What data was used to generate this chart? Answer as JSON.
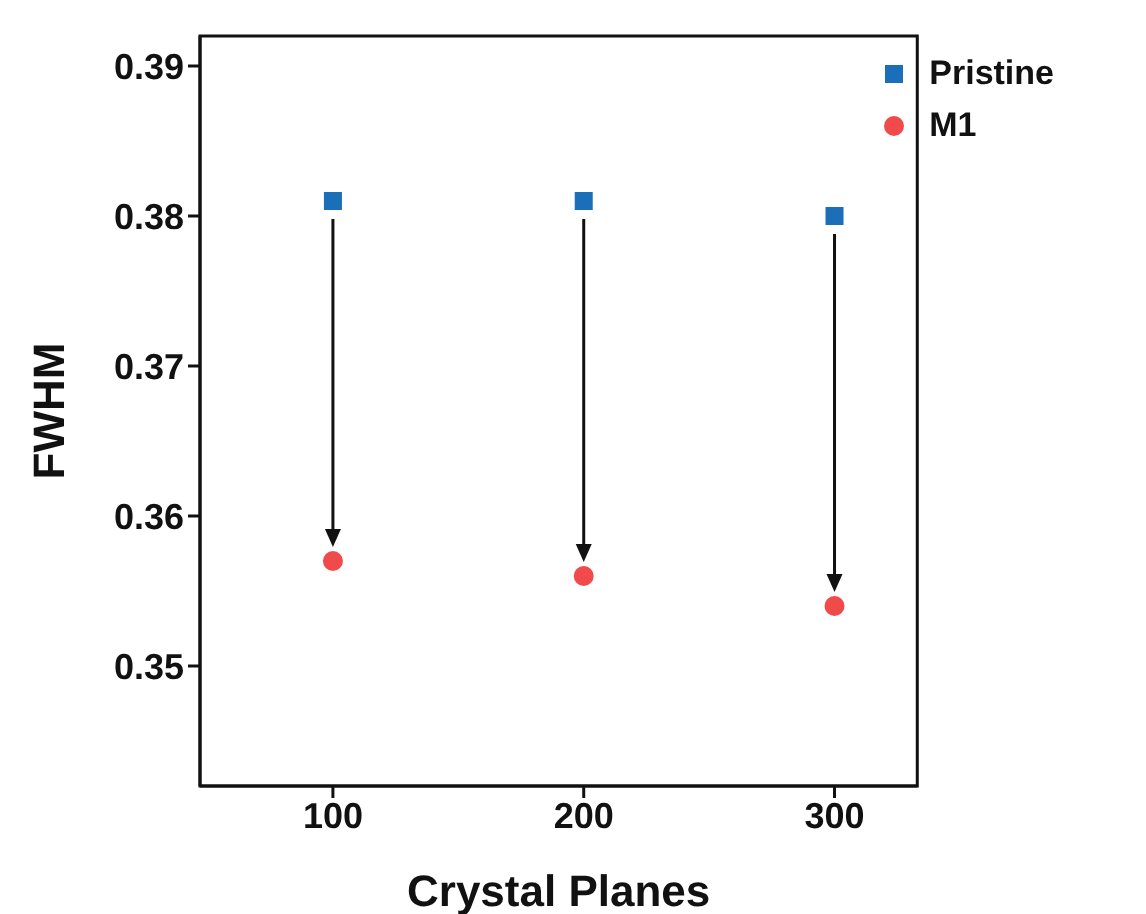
{
  "chart_data": {
    "type": "scatter",
    "xlabel": "Crystal Planes",
    "ylabel": "FWHM",
    "categories": [
      "100",
      "200",
      "300"
    ],
    "series": [
      {
        "name": "Pristine",
        "color": "#1a6fb8",
        "marker": "square",
        "values": [
          0.381,
          0.381,
          0.38
        ]
      },
      {
        "name": "M1",
        "color": "#f04a4a",
        "marker": "circle",
        "values": [
          0.357,
          0.356,
          0.354
        ]
      }
    ],
    "ylim": [
      0.342,
      0.392
    ],
    "yticks": [
      0.35,
      0.36,
      0.37,
      0.38,
      0.39
    ],
    "grid": false,
    "legend": "top right"
  }
}
